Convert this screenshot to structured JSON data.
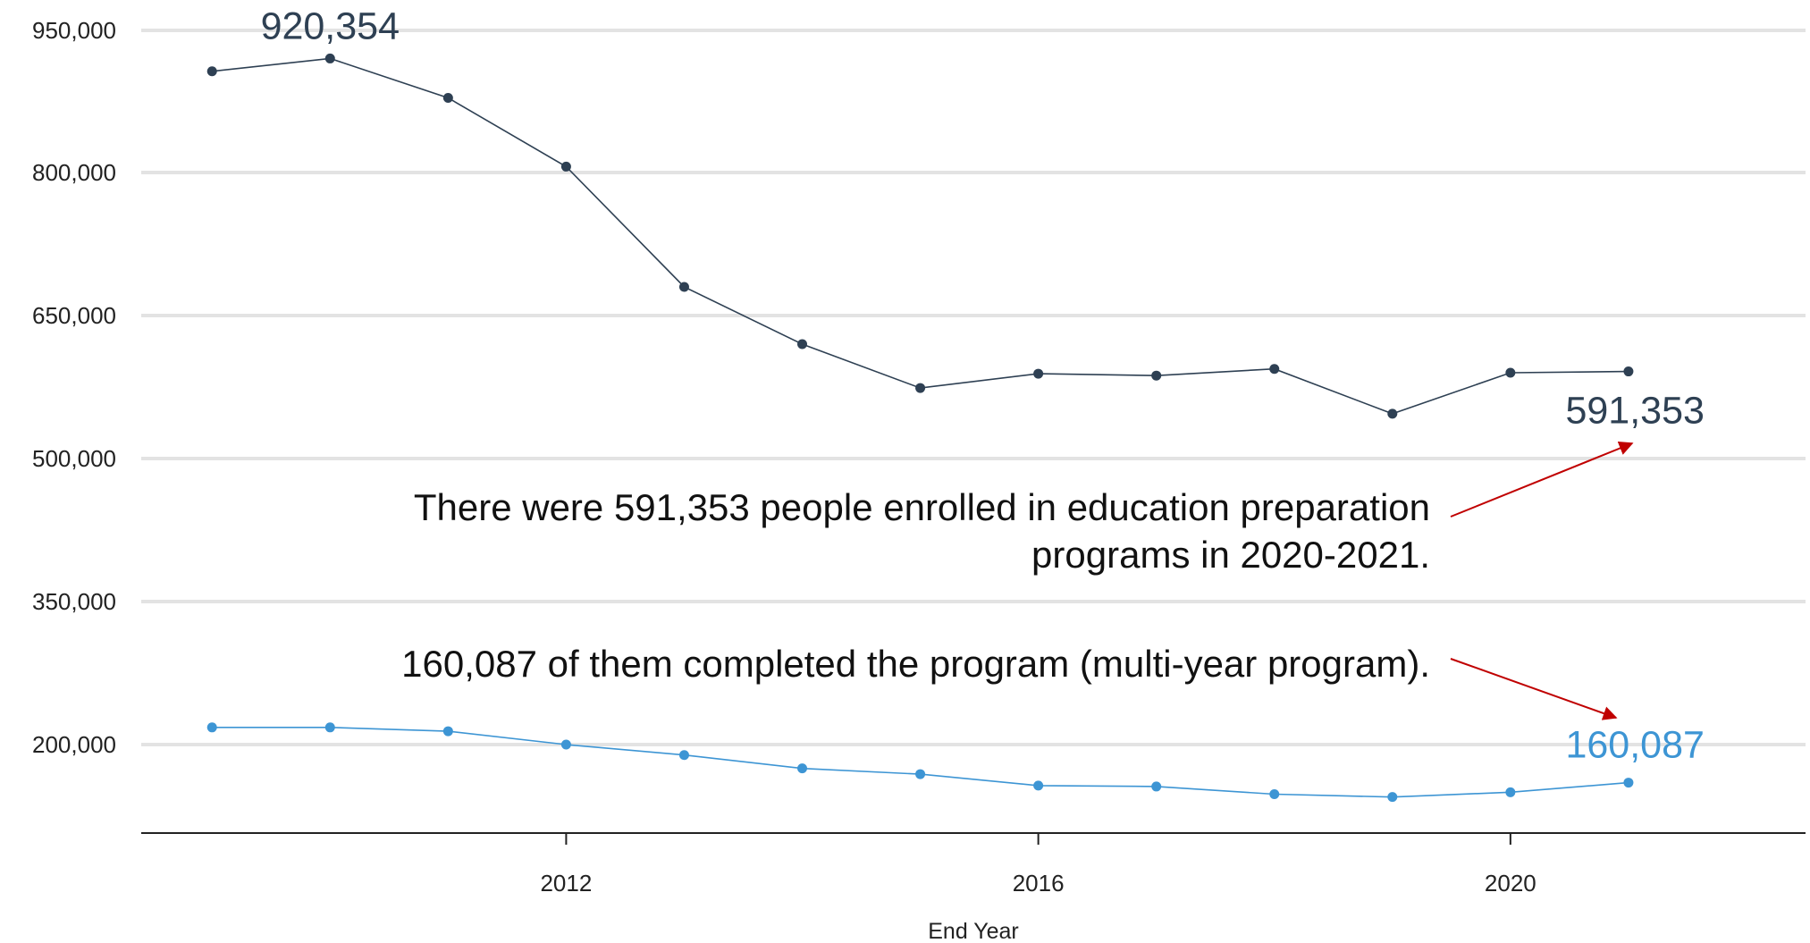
{
  "chart_data": {
    "type": "line",
    "xlabel": "End Year",
    "ylabel": "",
    "x": [
      2009,
      2010,
      2011,
      2012,
      2013,
      2014,
      2015,
      2016,
      2017,
      2018,
      2019,
      2020,
      2021
    ],
    "xlim": [
      2008.4,
      2022.5
    ],
    "ylim": [
      108000,
      955000
    ],
    "x_ticks": [
      2012,
      2016,
      2020
    ],
    "x_tick_labels": [
      "2012",
      "2016",
      "2020"
    ],
    "y_ticks": [
      200000,
      350000,
      500000,
      650000,
      800000,
      950000
    ],
    "y_tick_labels": [
      "200,000",
      "350,000",
      "500,000",
      "650,000",
      "800,000",
      "950,000"
    ],
    "grid": "horizontal",
    "series": [
      {
        "color": "#2e4053",
        "values": [
          906800,
          920354,
          878800,
          806200,
          680000,
          620000,
          574000,
          589000,
          587000,
          594000,
          547000,
          590000,
          591353
        ]
      },
      {
        "color": "#3d95d4",
        "values": [
          218000,
          218000,
          214000,
          200000,
          189000,
          175000,
          169000,
          157000,
          156000,
          148000,
          145000,
          150000,
          160087
        ]
      }
    ],
    "value_labels": [
      {
        "series": 0,
        "index": 1,
        "text": "920,354"
      },
      {
        "series": 0,
        "index": 12,
        "text": "591,353"
      },
      {
        "series": 1,
        "index": 12,
        "text": "160,087"
      }
    ],
    "annotations": [
      {
        "lines": [
          "There were 591,353 people enrolled in education preparation",
          "programs in 2020-2021."
        ],
        "arrow_color": "#c00000"
      },
      {
        "lines": [
          "160,087 of them completed the program (multi-year program)."
        ],
        "arrow_color": "#c00000"
      }
    ]
  }
}
